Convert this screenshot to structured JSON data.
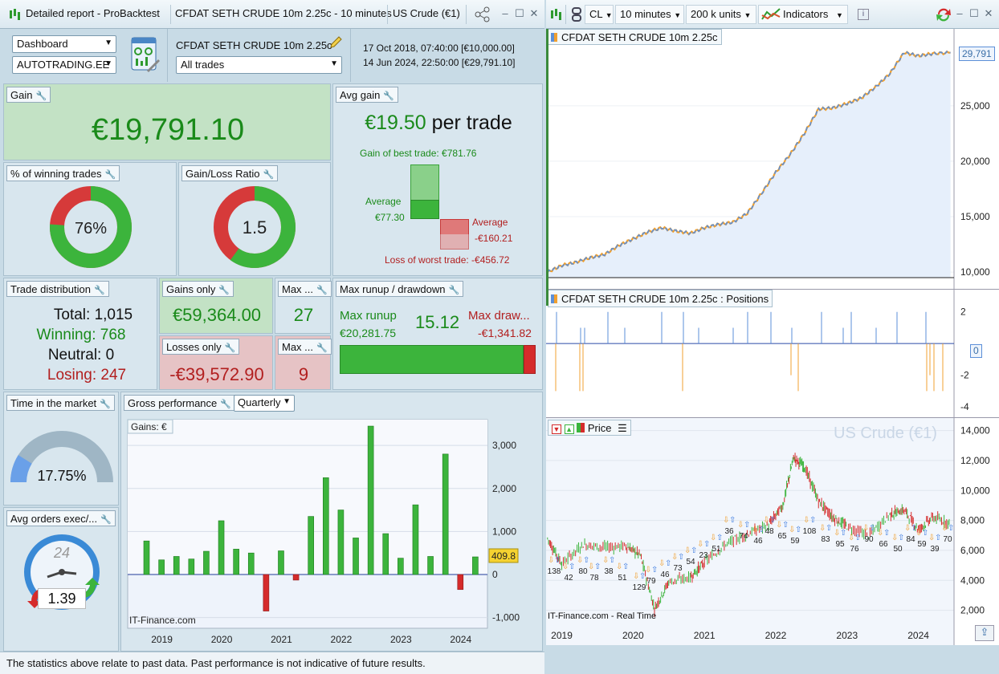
{
  "window": {
    "title": "Detailed report - ProBacktest",
    "system_name": "CFDAT SETH CRUDE 10m 2.25c - 10 minutes",
    "instrument": "US Crude (€1)"
  },
  "controls": {
    "view_select": "Dashboard",
    "account_select": "AUTOTRADING.EE",
    "system_name": "CFDAT SETH CRUDE 10m 2.25c",
    "trades_select": "All trades",
    "start_line": "17 Oct 2018, 07:40:00 [€10,000.00]",
    "end_line": "14 Jun 2024, 22:50:00 [€29,791.10]"
  },
  "gain": {
    "label": "Gain",
    "value": "€19,791.10"
  },
  "avg_gain": {
    "label": "Avg gain",
    "value": "€19.50",
    "suffix": "per trade",
    "best_label": "Gain of best trade: €781.76",
    "avg_win_label": "Average",
    "avg_win_value": "€77.30",
    "avg_loss_label": "Average",
    "avg_loss_value": "-€160.21",
    "worst_label": "Loss of worst trade: -€456.72",
    "win_fraction": 0.17,
    "loss_fraction": 0.35
  },
  "winning_pct": {
    "label": "% of winning trades",
    "value": "76%",
    "fraction": 0.76
  },
  "gain_loss_ratio": {
    "label": "Gain/Loss Ratio",
    "value": "1.5",
    "fraction": 0.6
  },
  "trade_distribution": {
    "label": "Trade distribution",
    "total": "Total: 1,015",
    "winning": "Winning: 768",
    "neutral": "Neutral: 0",
    "losing": "Losing: 247"
  },
  "gains_only": {
    "label": "Gains only",
    "value": "€59,364.00"
  },
  "losses_only": {
    "label": "Losses only",
    "value": "-€39,572.90"
  },
  "max_win": {
    "label": "Max ...",
    "value": "27"
  },
  "max_loss": {
    "label": "Max ...",
    "value": "9"
  },
  "runup": {
    "label": "Max runup / drawdown",
    "runup_label": "Max runup",
    "runup_value": "€20,281.75",
    "ratio": "15.12",
    "drawdown_label": "Max draw...",
    "drawdown_value": "-€1,341.82",
    "runup_fraction": 0.94
  },
  "time_in_market": {
    "label": "Time in the market",
    "value": "17.75%",
    "fraction": 0.1775
  },
  "gross_performance": {
    "label": "Gross performance",
    "period_select": "Quarterly",
    "tag": "Gains: €",
    "last_value": "409.8",
    "watermark": "IT-Finance.com"
  },
  "avg_orders": {
    "label": "Avg orders exec/...",
    "value": "1.39",
    "clock_number": "24"
  },
  "footer": "The statistics above relate to past data. Past performance is not indicative of future results.",
  "right_toolbar": {
    "symbol": "CL",
    "timeframe": "10 minutes",
    "units": "200 k units",
    "indicators": "Indicators"
  },
  "equity_chart": {
    "title": "CFDAT SETH CRUDE 10m 2.25c",
    "last_value": "29,791"
  },
  "positions_chart": {
    "title": "CFDAT SETH CRUDE 10m 2.25c : Positions",
    "last_value": "0"
  },
  "price_chart": {
    "tag": "Price",
    "watermark": "US Crude (€1)",
    "footer": "IT-Finance.com - Real Time"
  },
  "colors": {
    "gain_green": "#1a8a1a",
    "loss_red": "#b21f1f",
    "bar_green": "#3cb43c",
    "bar_red": "#d52b2b",
    "equity_blue": "#5b8fd8",
    "equity_orange": "#f0a030"
  },
  "chart_data": [
    {
      "type": "bar",
      "title": "Gains: €",
      "x": [
        "2018 Q4",
        "2019 Q1",
        "2019 Q2",
        "2019 Q3",
        "2019 Q4",
        "2020 Q1",
        "2020 Q2",
        "2020 Q3",
        "2020 Q4",
        "2021 Q1",
        "2021 Q2",
        "2021 Q3",
        "2021 Q4",
        "2022 Q1",
        "2022 Q2",
        "2022 Q3",
        "2022 Q4",
        "2023 Q1",
        "2023 Q2",
        "2023 Q3",
        "2023 Q4",
        "2024 Q1",
        "2024 Q2"
      ],
      "values": [
        780,
        340,
        420,
        360,
        540,
        1250,
        590,
        500,
        -850,
        550,
        -130,
        1350,
        2250,
        1500,
        850,
        3450,
        950,
        380,
        1620,
        420,
        2800,
        -350,
        410
      ],
      "ylim": [
        -1250,
        3600
      ],
      "yticks": [
        -1000,
        0,
        1000,
        2000,
        3000
      ],
      "ytick_labels": [
        "-1,000",
        "0",
        "1,000",
        "2,000",
        "3,000"
      ],
      "xtick_labels": [
        "2019",
        "2020",
        "2021",
        "2022",
        "2023",
        "2024"
      ]
    },
    {
      "type": "line",
      "title": "CFDAT SETH CRUDE 10m 2.25c",
      "x": [
        2018.8,
        2019.0,
        2019.2,
        2019.4,
        2019.6,
        2019.8,
        2020.0,
        2020.2,
        2020.4,
        2020.6,
        2020.8,
        2021.0,
        2021.2,
        2021.4,
        2021.6,
        2021.8,
        2022.0,
        2022.2,
        2022.4,
        2022.6,
        2022.8,
        2023.0,
        2023.2,
        2023.4,
        2023.6,
        2023.8,
        2024.0,
        2024.2,
        2024.45
      ],
      "values": [
        10000,
        10600,
        10900,
        11300,
        11600,
        12400,
        13000,
        13600,
        14000,
        13700,
        13500,
        14000,
        14300,
        14500,
        15300,
        17100,
        19000,
        20600,
        22500,
        24700,
        24800,
        25200,
        25700,
        26700,
        27900,
        29800,
        29500,
        29700,
        29791
      ],
      "ylim": [
        9500,
        31500
      ],
      "yticks": [
        10000,
        15000,
        20000,
        25000
      ],
      "ytick_labels": [
        "10,000",
        "15,000",
        "20,000",
        "25,000"
      ],
      "xtick_labels": [
        "2019",
        "2020",
        "2021",
        "2022",
        "2023",
        "2024"
      ]
    },
    {
      "type": "bar",
      "title": "CFDAT SETH CRUDE 10m 2.25c : Positions",
      "ylim": [
        -4.3,
        3.0
      ],
      "yticks": [
        2,
        0,
        -2,
        -4
      ],
      "ytick_labels": [
        "2",
        "0",
        "-2",
        "-4"
      ]
    },
    {
      "type": "line",
      "title": "US Crude (€1)",
      "x": [
        2018.8,
        2019.0,
        2019.3,
        2019.6,
        2019.9,
        2020.1,
        2020.3,
        2020.5,
        2020.8,
        2021.0,
        2021.3,
        2021.6,
        2021.9,
        2022.1,
        2022.25,
        2022.4,
        2022.6,
        2022.8,
        2023.0,
        2023.3,
        2023.6,
        2023.8,
        2024.0,
        2024.2,
        2024.45
      ],
      "values": [
        6800,
        5100,
        6400,
        6200,
        6300,
        5700,
        2100,
        3900,
        4200,
        5200,
        6400,
        7100,
        7700,
        9000,
        12200,
        11600,
        9300,
        8200,
        7600,
        7000,
        8400,
        8700,
        7400,
        8200,
        7800
      ],
      "ylim": [
        800,
        14300
      ],
      "yticks": [
        2000,
        4000,
        6000,
        8000,
        10000,
        12000,
        14000
      ],
      "ytick_labels": [
        "2,000",
        "4,000",
        "6,000",
        "8,000",
        "10,000",
        "12,000",
        "14,000"
      ],
      "xtick_labels": [
        "2019",
        "2020",
        "2021",
        "2022",
        "2023",
        "2024"
      ],
      "annotations": [
        "138",
        "42",
        "80",
        "78",
        "38",
        "51",
        "129",
        "79",
        "46",
        "73",
        "54",
        "23",
        "51",
        "36",
        "74",
        "46",
        "48",
        "65",
        "59",
        "108",
        "83",
        "95",
        "76",
        "90",
        "66",
        "50",
        "84",
        "59",
        "39",
        "70"
      ]
    }
  ]
}
